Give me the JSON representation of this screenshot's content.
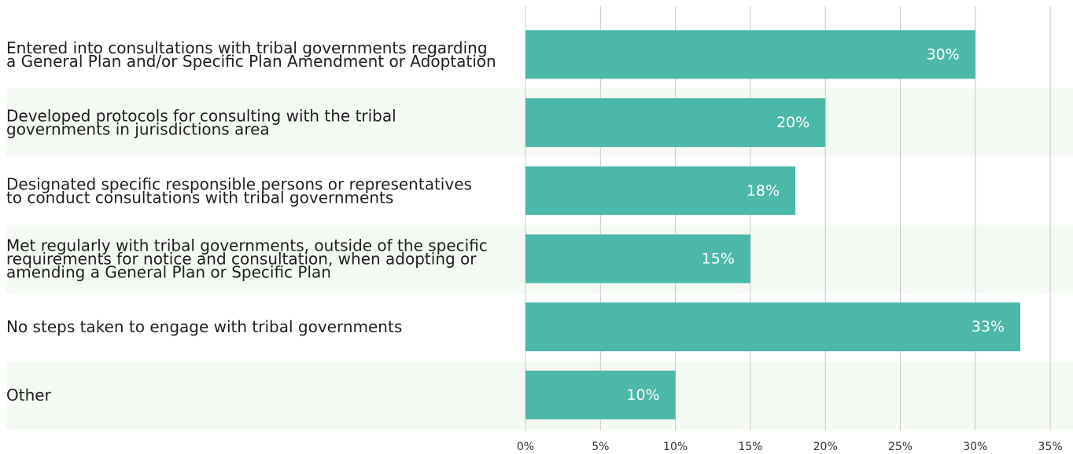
{
  "chart_data": {
    "type": "bar",
    "orientation": "horizontal",
    "title": "",
    "xlabel": "",
    "ylabel": "",
    "categories": [
      [
        "Entered into consultations with tribal governments regarding",
        "a General Plan and/or Specific Plan Amendment or Adoptation"
      ],
      [
        "Developed protocols for consulting with the tribal",
        "governments in jurisdictions area"
      ],
      [
        "Designated specific responsible persons or representatives",
        "to conduct consultations with tribal governments"
      ],
      [
        "Met regularly with tribal governments, outside of the specific",
        "requirements for notice and consultation, when adopting or",
        "amending a General Plan or Specific Plan"
      ],
      [
        "No steps taken to engage with tribal governments"
      ],
      [
        "Other"
      ]
    ],
    "values": [
      30,
      20,
      18,
      15,
      33,
      10
    ],
    "data_labels": [
      "30%",
      "20%",
      "18%",
      "15%",
      "33%",
      "10%"
    ],
    "xlim": [
      0,
      35
    ],
    "xticks": [
      0,
      5,
      10,
      15,
      20,
      25,
      30,
      35
    ],
    "xtick_labels": [
      "0%",
      "5%",
      "10%",
      "15%",
      "20%",
      "25%",
      "30%",
      "35%"
    ],
    "grid": "vertical",
    "legend": "none",
    "colors": {
      "bar": "#4cb8a8",
      "band": "#f4f9f3",
      "grid": "#c8c8c8",
      "text": "#1f1f1f"
    }
  }
}
